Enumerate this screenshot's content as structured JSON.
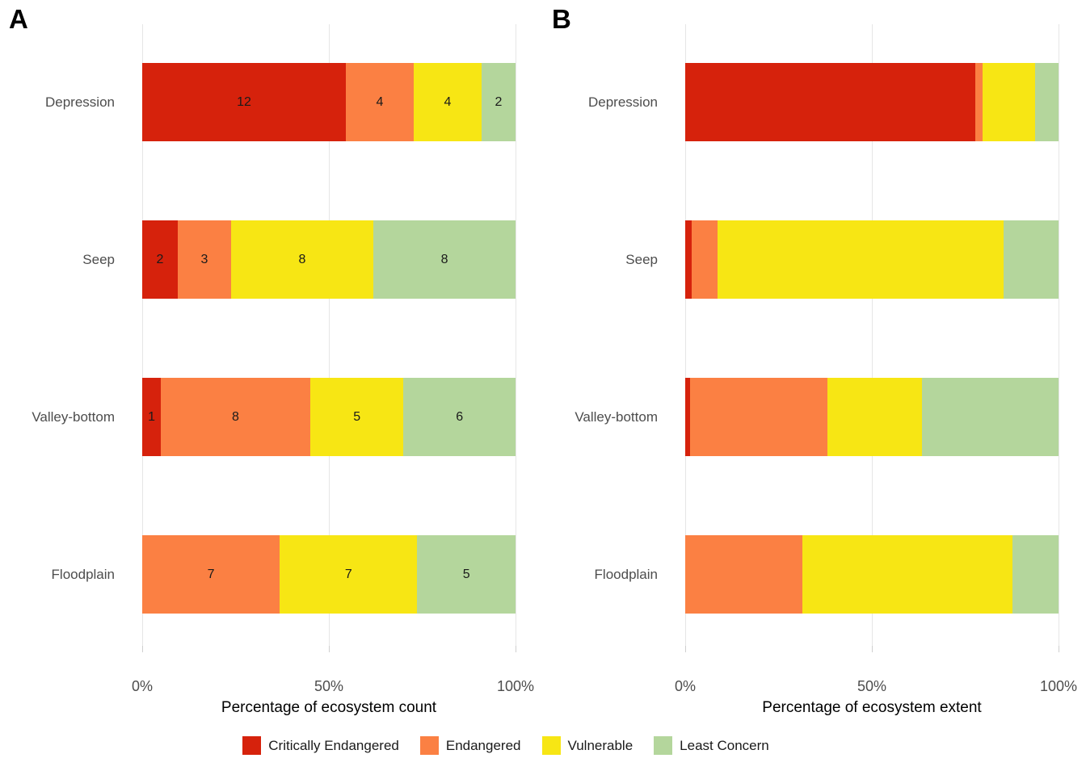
{
  "figure_background": "#ffffff",
  "colors": {
    "critically_endangered": "#d6220c",
    "endangered": "#fb8043",
    "vulnerable": "#f7e614",
    "least_concern": "#b4d69c",
    "gridline": "#e6e6e6",
    "axis_text": "#4d4d4d"
  },
  "legend": {
    "items": [
      {
        "label": "Critically Endangered",
        "color": "#d6220c"
      },
      {
        "label": "Endangered",
        "color": "#fb8043"
      },
      {
        "label": "Vulnerable",
        "color": "#f7e614"
      },
      {
        "label": "Least Concern",
        "color": "#b4d69c"
      }
    ]
  },
  "chart_data": [
    {
      "type": "bar",
      "orientation": "horizontal",
      "stacked": true,
      "panel_label": "A",
      "xlabel": "Percentage of ecosystem count",
      "categories": [
        "Depression",
        "Seep",
        "Valley-bottom",
        "Floodplain"
      ],
      "x_ticks": [
        "0%",
        "50%",
        "100%"
      ],
      "x_tick_values": [
        0,
        50,
        100
      ],
      "xlim": [
        0,
        100
      ],
      "show_value_labels": true,
      "series": [
        {
          "name": "Critically Endangered",
          "color": "#d6220c",
          "counts": [
            12,
            2,
            1,
            0
          ],
          "percents": [
            54.55,
            9.52,
            5.0,
            0
          ]
        },
        {
          "name": "Endangered",
          "color": "#fb8043",
          "counts": [
            4,
            3,
            8,
            7
          ],
          "percents": [
            18.18,
            14.29,
            40.0,
            36.84
          ]
        },
        {
          "name": "Vulnerable",
          "color": "#f7e614",
          "counts": [
            4,
            8,
            5,
            7
          ],
          "percents": [
            18.18,
            38.1,
            25.0,
            36.84
          ]
        },
        {
          "name": "Least Concern",
          "color": "#b4d69c",
          "counts": [
            2,
            8,
            6,
            5
          ],
          "percents": [
            9.09,
            38.1,
            30.0,
            26.32
          ]
        }
      ]
    },
    {
      "type": "bar",
      "orientation": "horizontal",
      "stacked": true,
      "panel_label": "B",
      "xlabel": "Percentage of ecosystem extent",
      "categories": [
        "Depression",
        "Seep",
        "Valley-bottom",
        "Floodplain"
      ],
      "x_ticks": [
        "0%",
        "50%",
        "100%"
      ],
      "x_tick_values": [
        0,
        50,
        100
      ],
      "xlim": [
        0,
        100
      ],
      "show_value_labels": false,
      "series": [
        {
          "name": "Critically Endangered",
          "color": "#d6220c",
          "percents": [
            77.8,
            1.7,
            1.3,
            0
          ]
        },
        {
          "name": "Endangered",
          "color": "#fb8043",
          "percents": [
            1.8,
            7.0,
            36.8,
            31.3
          ]
        },
        {
          "name": "Vulnerable",
          "color": "#f7e614",
          "percents": [
            14.1,
            76.5,
            25.4,
            56.4
          ]
        },
        {
          "name": "Least Concern",
          "color": "#b4d69c",
          "percents": [
            6.3,
            14.8,
            36.5,
            12.3
          ]
        }
      ]
    }
  ]
}
